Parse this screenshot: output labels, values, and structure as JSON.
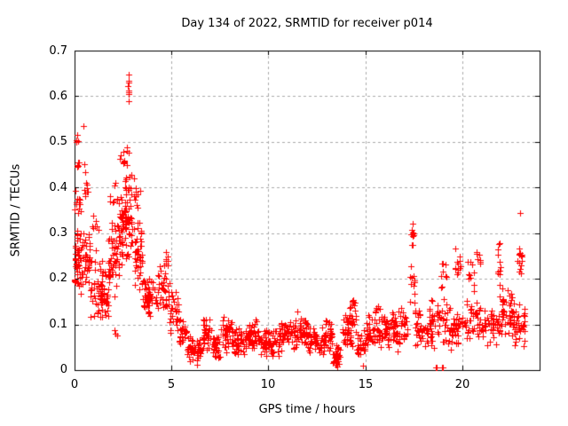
{
  "chart_data": {
    "type": "scatter",
    "title": "Day 134 of 2022, SRMTID for receiver p014",
    "xlabel": "GPS time / hours",
    "ylabel": "SRMTID / TECUs",
    "xlim": [
      0,
      24
    ],
    "ylim": [
      0,
      0.7
    ],
    "xticks": [
      0,
      5,
      10,
      15,
      20
    ],
    "yticks": [
      0,
      0.1,
      0.2,
      0.3,
      0.4,
      0.5,
      0.6,
      0.7
    ],
    "xtick_labels": [
      "0",
      "5",
      "10",
      "15",
      "20"
    ],
    "ytick_labels": [
      "0",
      "0.1",
      "0.2",
      "0.3",
      "0.4",
      "0.5",
      "0.6",
      "0.7"
    ],
    "grid": true,
    "grid_style": "dashed",
    "legend": "none",
    "marker": "plus",
    "marker_color": "#ff0000",
    "grid_color": "#aaaaaa",
    "axis_color": "#000000",
    "background": "#ffffff",
    "encoding_note": "point_clusters rows are [hourStart, hourEnd, valueMin, valueMax, pointCount] approximating the dense scatter read from the plot; outlier_points are individual [hour, value] points",
    "point_clusters": [
      [
        0.0,
        0.35,
        0.16,
        0.33,
        48
      ],
      [
        0.0,
        0.35,
        0.33,
        0.41,
        12
      ],
      [
        0.05,
        0.2,
        0.49,
        0.525,
        5
      ],
      [
        0.08,
        0.25,
        0.42,
        0.47,
        7
      ],
      [
        0.35,
        0.8,
        0.18,
        0.32,
        38
      ],
      [
        0.45,
        0.7,
        0.35,
        0.47,
        10
      ],
      [
        0.8,
        1.45,
        0.09,
        0.28,
        44
      ],
      [
        0.9,
        1.25,
        0.28,
        0.35,
        7
      ],
      [
        1.3,
        1.75,
        0.1,
        0.22,
        34
      ],
      [
        1.7,
        2.2,
        0.14,
        0.34,
        46
      ],
      [
        1.8,
        2.3,
        0.34,
        0.42,
        9
      ],
      [
        2.2,
        2.65,
        0.2,
        0.42,
        48
      ],
      [
        2.3,
        2.6,
        0.42,
        0.5,
        8
      ],
      [
        2.6,
        3.1,
        0.22,
        0.5,
        58
      ],
      [
        2.74,
        2.82,
        0.56,
        0.655,
        9
      ],
      [
        3.1,
        3.5,
        0.15,
        0.36,
        42
      ],
      [
        3.15,
        3.4,
        0.36,
        0.44,
        6
      ],
      [
        3.5,
        4.3,
        0.115,
        0.21,
        58
      ],
      [
        4.3,
        4.9,
        0.12,
        0.25,
        36
      ],
      [
        4.7,
        4.85,
        0.2,
        0.3,
        7
      ],
      [
        4.9,
        5.4,
        0.07,
        0.18,
        32
      ],
      [
        5.4,
        5.8,
        0.045,
        0.12,
        26
      ],
      [
        5.8,
        6.6,
        0.015,
        0.08,
        52
      ],
      [
        6.6,
        7.1,
        0.03,
        0.125,
        36
      ],
      [
        7.1,
        7.55,
        0.02,
        0.08,
        30
      ],
      [
        7.55,
        8.1,
        0.03,
        0.13,
        40
      ],
      [
        8.1,
        9.0,
        0.03,
        0.1,
        56
      ],
      [
        9.0,
        9.6,
        0.04,
        0.12,
        40
      ],
      [
        9.6,
        10.6,
        0.025,
        0.1,
        62
      ],
      [
        10.6,
        11.1,
        0.04,
        0.11,
        36
      ],
      [
        11.1,
        12.0,
        0.04,
        0.13,
        56
      ],
      [
        12.0,
        12.9,
        0.03,
        0.1,
        56
      ],
      [
        12.9,
        13.3,
        0.04,
        0.12,
        30
      ],
      [
        13.3,
        13.8,
        0.006,
        0.06,
        30
      ],
      [
        13.8,
        14.6,
        0.03,
        0.145,
        52
      ],
      [
        14.2,
        14.5,
        0.13,
        0.165,
        8
      ],
      [
        14.6,
        15.0,
        0.02,
        0.09,
        26
      ],
      [
        15.0,
        16.3,
        0.04,
        0.13,
        75
      ],
      [
        15.5,
        15.8,
        0.12,
        0.155,
        6
      ],
      [
        16.3,
        17.2,
        0.04,
        0.14,
        56
      ],
      [
        17.3,
        17.55,
        0.13,
        0.27,
        12
      ],
      [
        17.35,
        17.5,
        0.27,
        0.335,
        10
      ],
      [
        17.55,
        18.6,
        0.04,
        0.14,
        55
      ],
      [
        18.3,
        18.55,
        0.1,
        0.16,
        8
      ],
      [
        18.7,
        19.25,
        0.05,
        0.17,
        26
      ],
      [
        18.85,
        19.2,
        0.17,
        0.25,
        9
      ],
      [
        19.25,
        20.0,
        0.04,
        0.15,
        40
      ],
      [
        19.65,
        19.95,
        0.17,
        0.28,
        12
      ],
      [
        20.0,
        21.0,
        0.05,
        0.16,
        50
      ],
      [
        20.2,
        20.6,
        0.16,
        0.25,
        10
      ],
      [
        20.75,
        20.95,
        0.22,
        0.305,
        8
      ],
      [
        21.0,
        22.0,
        0.05,
        0.15,
        50
      ],
      [
        21.8,
        22.0,
        0.15,
        0.25,
        8
      ],
      [
        21.85,
        21.95,
        0.24,
        0.285,
        4
      ],
      [
        22.0,
        22.65,
        0.07,
        0.19,
        42
      ],
      [
        22.65,
        23.25,
        0.05,
        0.15,
        40
      ],
      [
        22.85,
        23.1,
        0.19,
        0.28,
        14
      ]
    ],
    "outlier_points": [
      [
        0.47,
        0.535
      ],
      [
        2.05,
        0.088
      ],
      [
        2.1,
        0.08
      ],
      [
        2.18,
        0.075
      ],
      [
        6.3,
        0.012
      ],
      [
        13.5,
        0.012
      ],
      [
        13.55,
        0.008
      ],
      [
        14.9,
        0.01
      ],
      [
        18.62,
        0.006
      ],
      [
        18.68,
        0.006
      ],
      [
        18.95,
        0.006
      ],
      [
        19.02,
        0.006
      ],
      [
        23.0,
        0.345
      ]
    ]
  }
}
